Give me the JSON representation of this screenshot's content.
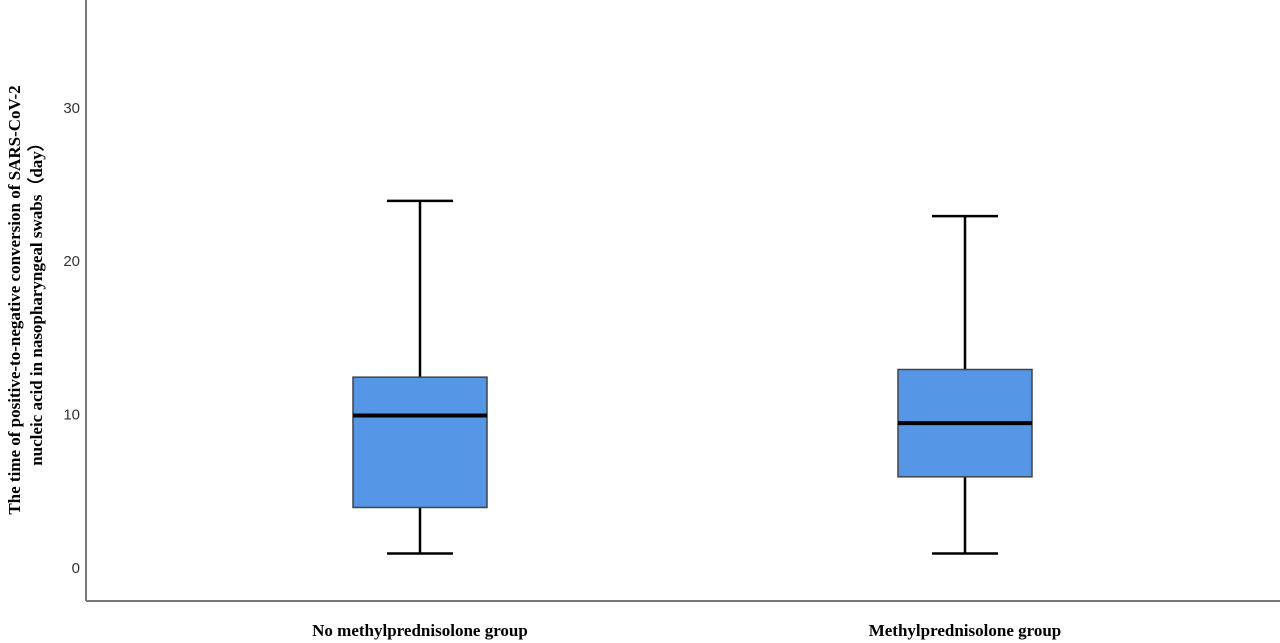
{
  "chart_data": {
    "type": "box",
    "ylabel": [
      "The time of positive-to-negative conversion of SARS-CoV-2",
      "nucleic acid in nasopharyngeal swabs（day）"
    ],
    "categories": [
      "No methylprednisolone group",
      "Methylprednisolone group"
    ],
    "min": [
      1,
      1
    ],
    "q1": [
      4,
      6
    ],
    "median": [
      10,
      9.5
    ],
    "q3": [
      12.5,
      13
    ],
    "max": [
      24,
      23
    ],
    "color": "#5596e6",
    "ylim": [
      -2.1,
      37.1
    ],
    "yticks": [
      0,
      10,
      20,
      30
    ]
  }
}
